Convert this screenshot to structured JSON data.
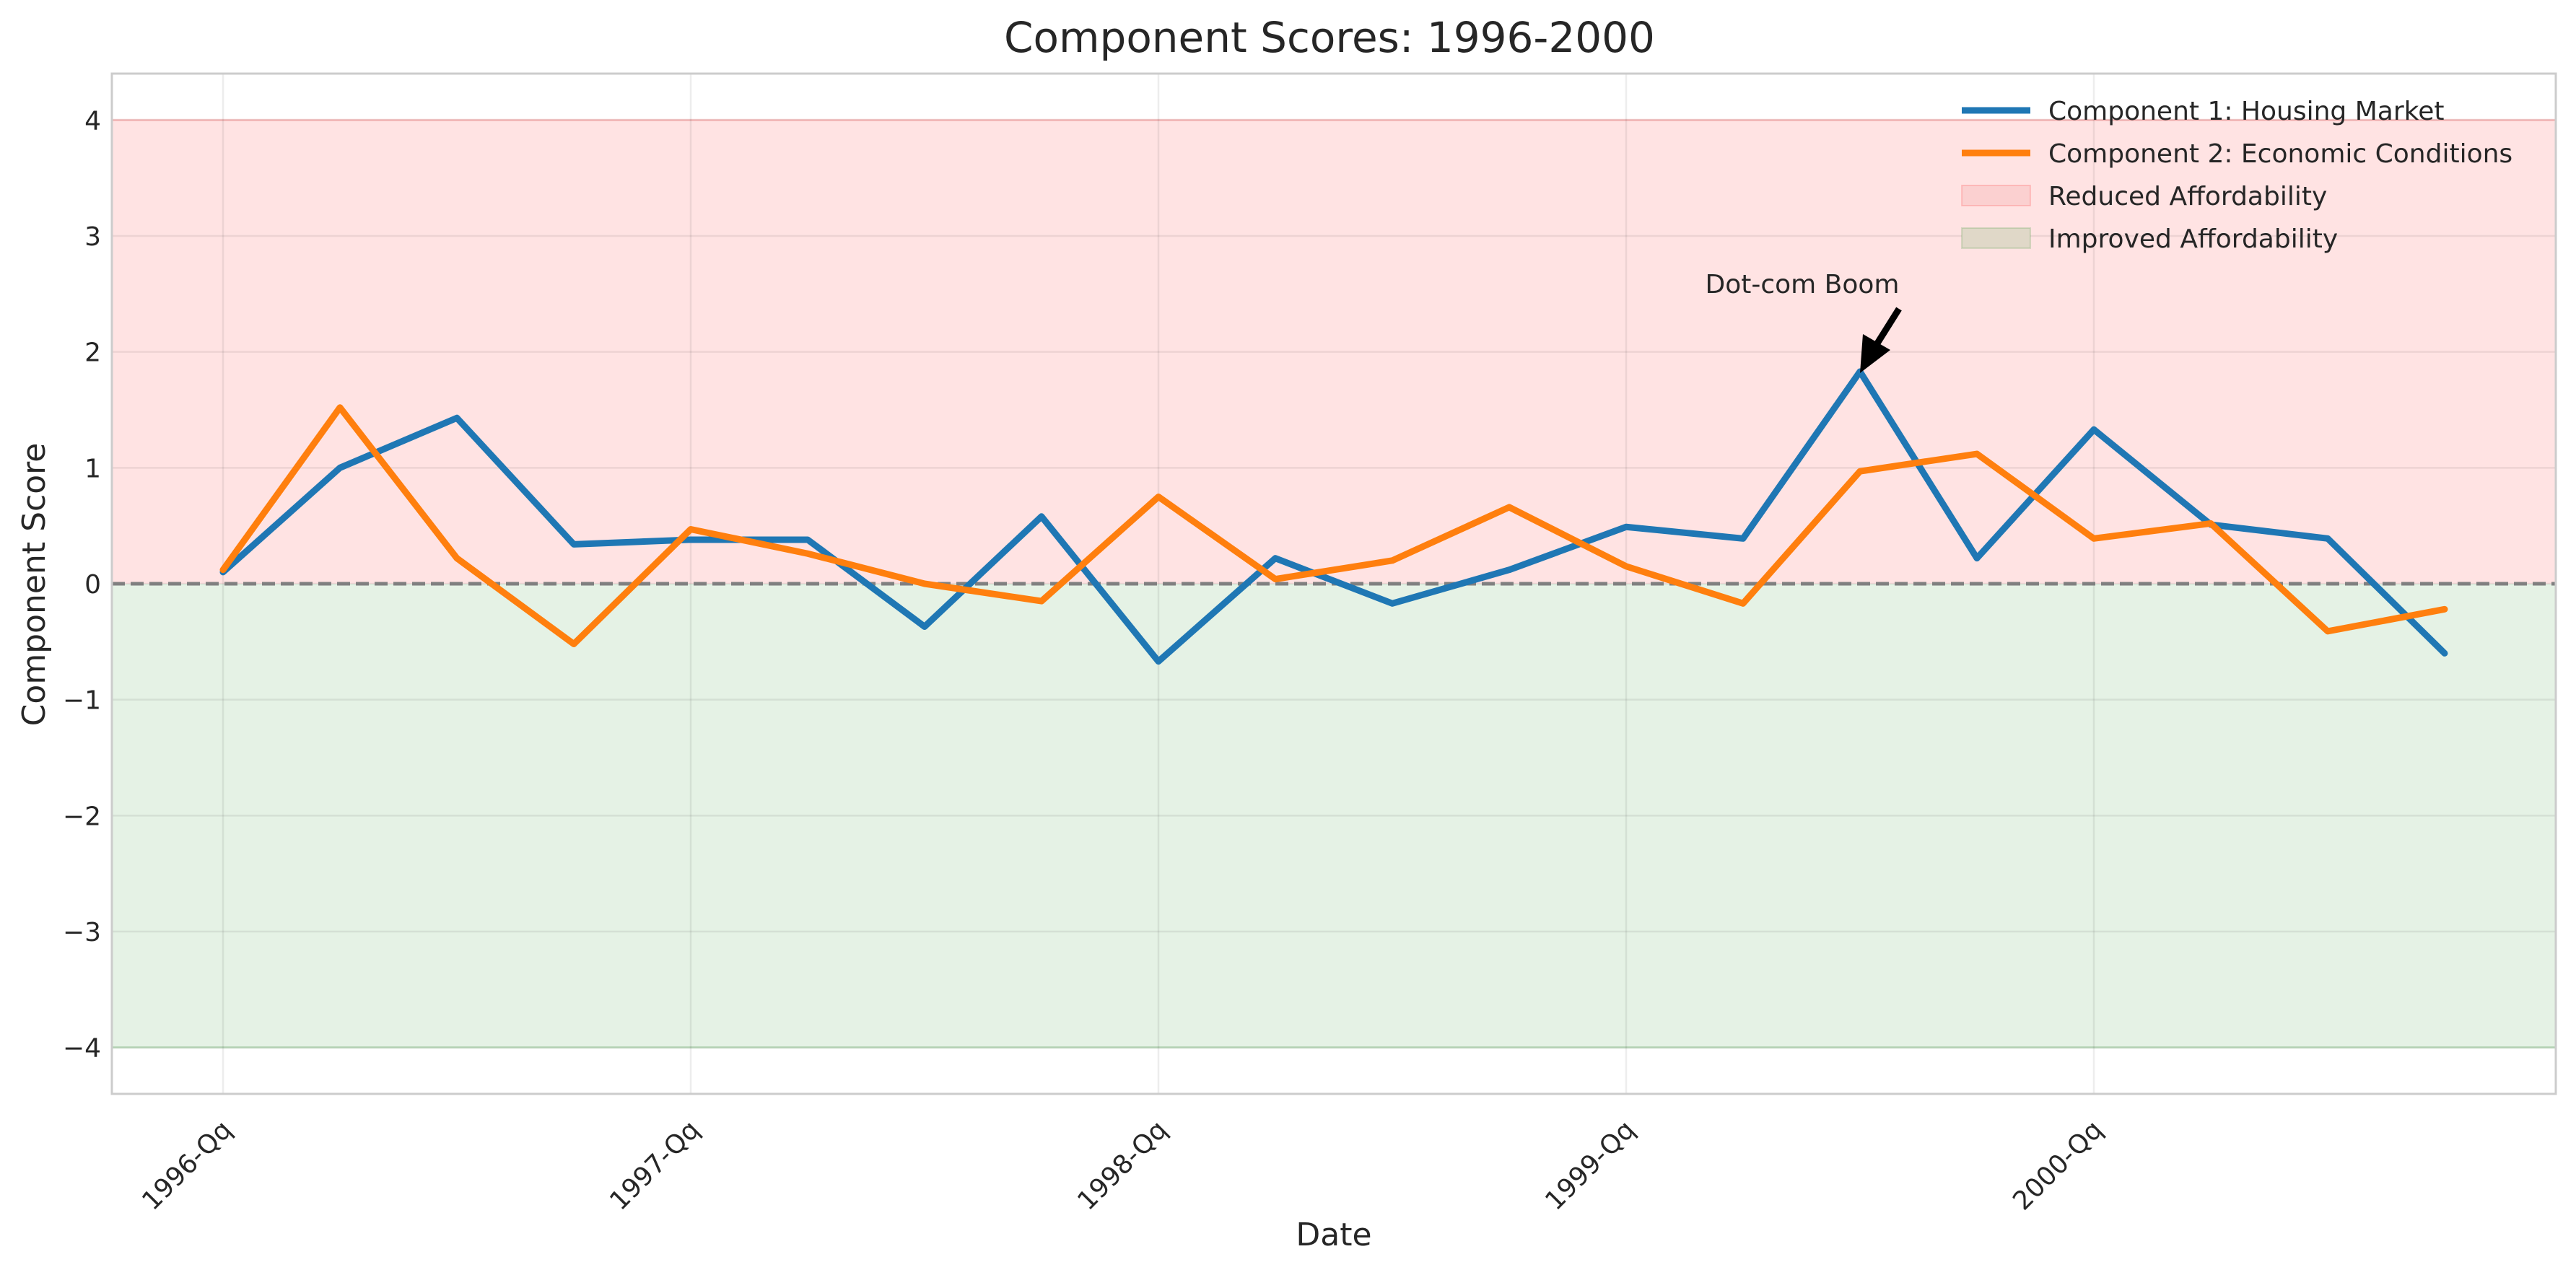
{
  "chart_data": {
    "type": "line",
    "title": "Component Scores: 1996-2000",
    "xlabel": "Date",
    "ylabel": "Component Score",
    "ylim": [
      -4.4,
      4.4
    ],
    "y_ticks": [
      -4,
      -3,
      -2,
      -1,
      0,
      1,
      2,
      3,
      4
    ],
    "y_tick_labels": [
      "−4",
      "−3",
      "−2",
      "−1",
      "0",
      "1",
      "2",
      "3",
      "4"
    ],
    "x": [
      "1996-Q1",
      "1996-Q2",
      "1996-Q3",
      "1996-Q4",
      "1997-Q1",
      "1997-Q2",
      "1997-Q3",
      "1997-Q4",
      "1998-Q1",
      "1998-Q2",
      "1998-Q3",
      "1998-Q4",
      "1999-Q1",
      "1999-Q2",
      "1999-Q3",
      "1999-Q4",
      "2000-Q1",
      "2000-Q2",
      "2000-Q3",
      "2000-Q4"
    ],
    "x_ticks": [
      {
        "at": "1996-Q1",
        "label": "1996-Qq"
      },
      {
        "at": "1997-Q1",
        "label": "1997-Qq"
      },
      {
        "at": "1998-Q1",
        "label": "1998-Qq"
      },
      {
        "at": "1999-Q1",
        "label": "1999-Qq"
      },
      {
        "at": "2000-Q1",
        "label": "2000-Qq"
      }
    ],
    "series": [
      {
        "name": "Component 1: Housing Market",
        "color": "#1f77b4",
        "values": [
          0.1,
          1.0,
          1.43,
          0.34,
          0.38,
          0.38,
          -0.37,
          0.58,
          -0.67,
          0.22,
          -0.17,
          0.12,
          0.49,
          0.39,
          1.83,
          0.22,
          1.33,
          0.51,
          0.39,
          -0.6
        ]
      },
      {
        "name": "Component 2: Economic Conditions",
        "color": "#ff7f0e",
        "values": [
          0.12,
          1.52,
          0.22,
          -0.52,
          0.47,
          0.26,
          0.0,
          -0.15,
          0.75,
          0.04,
          0.2,
          0.66,
          0.15,
          -0.17,
          0.97,
          1.12,
          0.39,
          0.52,
          -0.41,
          -0.22
        ]
      }
    ],
    "regions": [
      {
        "name": "Reduced Affordability",
        "from": 0,
        "to": 4,
        "color": "#ff0000",
        "opacity": 0.11
      },
      {
        "name": "Improved Affordability",
        "from": -4,
        "to": 0,
        "color": "#008000",
        "opacity": 0.1
      }
    ],
    "legend_swatches": [
      "#fbd0d0",
      "#e0d8c8"
    ],
    "reference_line": {
      "y": 0,
      "style": "dashed",
      "color": "#808080"
    },
    "annotations": [
      {
        "text": "Dot-com Boom",
        "x": "1999-Q3",
        "y": 1.83
      }
    ],
    "grid": true,
    "legend_position": "top-right"
  }
}
